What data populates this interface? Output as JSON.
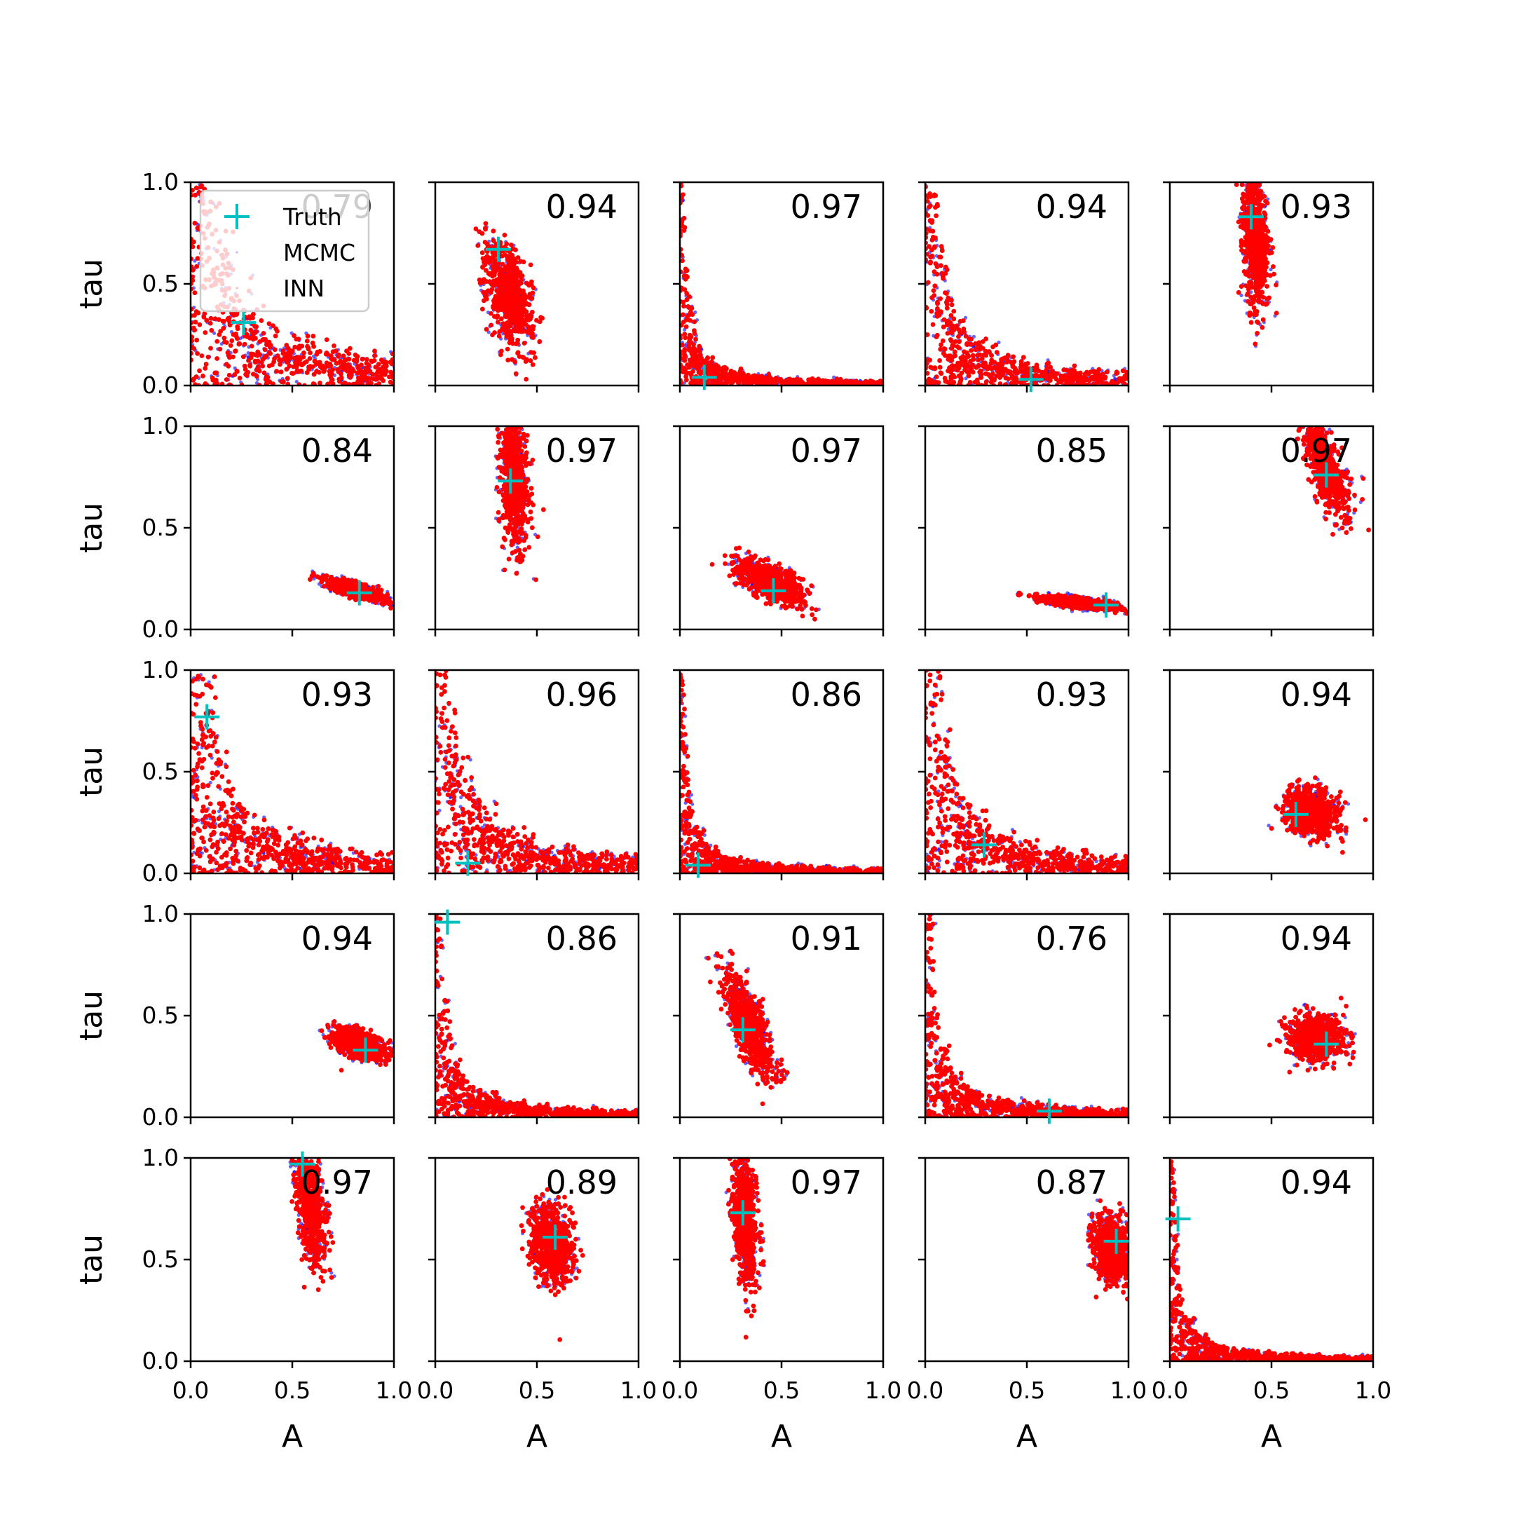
{
  "chart_data": {
    "type": "scatter",
    "grid": false,
    "xlabel": "A",
    "ylabel": "tau",
    "xlim": [
      0,
      1
    ],
    "ylim": [
      0,
      1
    ],
    "xticks": [
      "0.0",
      "0.5",
      "1.0"
    ],
    "yticks": [
      "0.0",
      "0.5",
      "1.0"
    ],
    "legend": {
      "placement": "top-left of first panel",
      "entries": [
        {
          "label": "Truth",
          "marker": "plus",
          "color": "#00bfbf"
        },
        {
          "label": "MCMC",
          "marker": "dot",
          "color": "#0000ff"
        },
        {
          "label": "INN",
          "marker": "dot",
          "color": "#ff0000"
        }
      ]
    },
    "series_colors": {
      "truth": "#00bfbf",
      "mcmc": "#0000ff",
      "inn": "#ff0000"
    },
    "panels": [
      {
        "row": 0,
        "col": 0,
        "corr": "0.79",
        "truth": [
          0.26,
          0.31
        ],
        "shape": "hyperbola",
        "k": 0.075
      },
      {
        "row": 0,
        "col": 1,
        "corr": "0.94",
        "truth": [
          0.31,
          0.67
        ],
        "shape": "blob",
        "cx": 0.36,
        "cy": 0.44,
        "sx": 0.11,
        "sy": 0.28,
        "rot": 0.25
      },
      {
        "row": 0,
        "col": 2,
        "corr": "0.97",
        "truth": [
          0.12,
          0.04
        ],
        "shape": "hyperbola",
        "k": 0.012
      },
      {
        "row": 0,
        "col": 3,
        "corr": "0.94",
        "truth": [
          0.52,
          0.03
        ],
        "shape": "hyperbola",
        "k": 0.035
      },
      {
        "row": 0,
        "col": 4,
        "corr": "0.93",
        "truth": [
          0.4,
          0.83
        ],
        "shape": "blob",
        "cx": 0.42,
        "cy": 0.72,
        "sx": 0.065,
        "sy": 0.38,
        "rot": 0.06
      },
      {
        "row": 1,
        "col": 0,
        "corr": "0.84",
        "truth": [
          0.83,
          0.18
        ],
        "shape": "blob",
        "cx": 0.82,
        "cy": 0.19,
        "sx": 0.17,
        "sy": 0.035,
        "rot": -0.3
      },
      {
        "row": 1,
        "col": 1,
        "corr": "0.97",
        "truth": [
          0.37,
          0.73
        ],
        "shape": "blob",
        "cx": 0.39,
        "cy": 0.73,
        "sx": 0.07,
        "sy": 0.36,
        "rot": 0.05
      },
      {
        "row": 1,
        "col": 2,
        "corr": "0.97",
        "truth": [
          0.46,
          0.19
        ],
        "shape": "blob",
        "cx": 0.45,
        "cy": 0.23,
        "sx": 0.2,
        "sy": 0.09,
        "rot": -0.5
      },
      {
        "row": 1,
        "col": 3,
        "corr": "0.85",
        "truth": [
          0.89,
          0.12
        ],
        "shape": "blob",
        "cx": 0.76,
        "cy": 0.13,
        "sx": 0.22,
        "sy": 0.025,
        "rot": -0.12
      },
      {
        "row": 1,
        "col": 4,
        "corr": "0.97",
        "truth": [
          0.77,
          0.76
        ],
        "shape": "blob",
        "cx": 0.77,
        "cy": 0.79,
        "sx": 0.08,
        "sy": 0.26,
        "rot": 0.35
      },
      {
        "row": 2,
        "col": 0,
        "corr": "0.93",
        "truth": [
          0.08,
          0.77
        ],
        "shape": "hyperbola",
        "k": 0.055
      },
      {
        "row": 2,
        "col": 1,
        "corr": "0.96",
        "truth": [
          0.16,
          0.05
        ],
        "shape": "hyperbola",
        "k": 0.05
      },
      {
        "row": 2,
        "col": 2,
        "corr": "0.86",
        "truth": [
          0.09,
          0.04
        ],
        "shape": "hyperbola",
        "k": 0.012
      },
      {
        "row": 2,
        "col": 3,
        "corr": "0.93",
        "truth": [
          0.29,
          0.14
        ],
        "shape": "hyperbola",
        "k": 0.045
      },
      {
        "row": 2,
        "col": 4,
        "corr": "0.94",
        "truth": [
          0.62,
          0.29
        ],
        "shape": "blob",
        "cx": 0.7,
        "cy": 0.3,
        "sx": 0.15,
        "sy": 0.12,
        "rot": -0.4
      },
      {
        "row": 3,
        "col": 0,
        "corr": "0.94",
        "truth": [
          0.86,
          0.33
        ],
        "shape": "blob",
        "cx": 0.83,
        "cy": 0.36,
        "sx": 0.15,
        "sy": 0.07,
        "rot": -0.35
      },
      {
        "row": 3,
        "col": 1,
        "corr": "0.86",
        "truth": [
          0.06,
          0.96
        ],
        "shape": "hyperbola",
        "k": 0.018
      },
      {
        "row": 3,
        "col": 2,
        "corr": "0.91",
        "truth": [
          0.31,
          0.43
        ],
        "shape": "blob",
        "cx": 0.34,
        "cy": 0.45,
        "sx": 0.08,
        "sy": 0.3,
        "rot": 0.35
      },
      {
        "row": 3,
        "col": 3,
        "corr": "0.76",
        "truth": [
          0.61,
          0.03
        ],
        "shape": "hyperbola",
        "k": 0.02
      },
      {
        "row": 3,
        "col": 4,
        "corr": "0.94",
        "truth": [
          0.77,
          0.36
        ],
        "shape": "blob",
        "cx": 0.72,
        "cy": 0.39,
        "sx": 0.15,
        "sy": 0.13,
        "rot": -0.3
      },
      {
        "row": 4,
        "col": 0,
        "corr": "0.97",
        "truth": [
          0.55,
          0.97
        ],
        "shape": "blob",
        "cx": 0.59,
        "cy": 0.77,
        "sx": 0.07,
        "sy": 0.32,
        "rot": 0.1
      },
      {
        "row": 4,
        "col": 1,
        "corr": "0.89",
        "truth": [
          0.59,
          0.61
        ],
        "shape": "blob",
        "cx": 0.57,
        "cy": 0.58,
        "sx": 0.11,
        "sy": 0.22,
        "rot": 0.15
      },
      {
        "row": 4,
        "col": 2,
        "corr": "0.97",
        "truth": [
          0.31,
          0.73
        ],
        "shape": "blob",
        "cx": 0.32,
        "cy": 0.7,
        "sx": 0.06,
        "sy": 0.38,
        "rot": 0.06
      },
      {
        "row": 4,
        "col": 3,
        "corr": "0.87",
        "truth": [
          0.94,
          0.59
        ],
        "shape": "blob",
        "cx": 0.92,
        "cy": 0.55,
        "sx": 0.1,
        "sy": 0.18,
        "rot": 0.1
      },
      {
        "row": 4,
        "col": 4,
        "corr": "0.94",
        "truth": [
          0.04,
          0.7
        ],
        "shape": "hyperbola",
        "k": 0.012
      }
    ]
  }
}
